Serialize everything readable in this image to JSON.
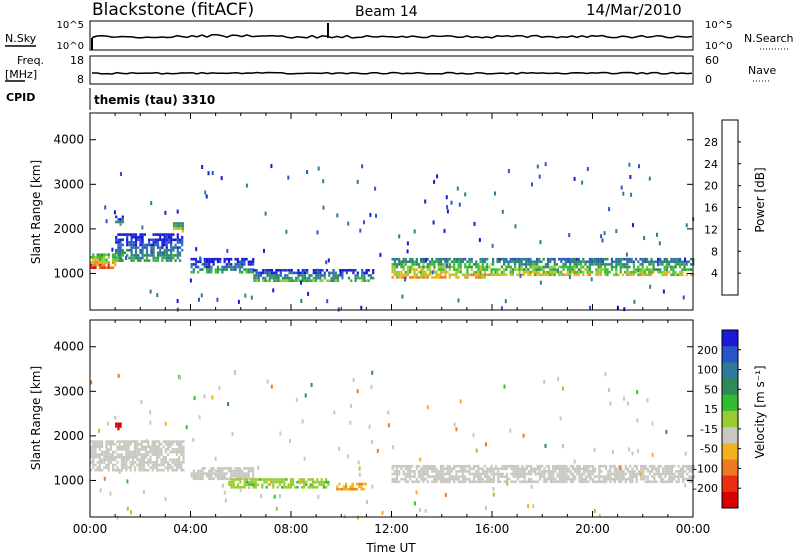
{
  "header": {
    "radar": "Blackstone (fitACF)",
    "beam": "Beam 14",
    "date": "14/Mar/2010"
  },
  "aux": {
    "nsky_label": "N.Sky",
    "nsky_ticks": [
      "10^5",
      "10^0"
    ],
    "nsearch_label": "N.Search",
    "nsearch_ticks": [
      "10^5",
      "10^0"
    ],
    "freq_label": "Freq.",
    "freq_unit": "[MHz]",
    "freq_ticks": [
      "18",
      "8"
    ],
    "nave_label": "Nave",
    "nave_ticks": [
      "60",
      "0"
    ],
    "cpid_label": "CPID",
    "cpid_value": "themis (tau) 3310"
  },
  "colors": {
    "power": [
      "#1a1ad6",
      "#2a55c8",
      "#2f7a99",
      "#2e8b57",
      "#33bb33",
      "#99cc33",
      "#f2b21e",
      "#f07820",
      "#e83010",
      "#d80000"
    ],
    "velocity": [
      "#1a1ad6",
      "#2a55c8",
      "#2f7a99",
      "#2e8b57",
      "#33bb33",
      "#99cc33",
      "#c8c8c0",
      "#f2b21e",
      "#f07820",
      "#e83010",
      "#d80000"
    ],
    "ground_scatter": "#c8c8c0"
  },
  "colorbars": {
    "power": {
      "label": "Power [dB]",
      "ticks": [
        "28",
        "24",
        "20",
        "16",
        "12",
        "8",
        "4"
      ]
    },
    "velocity": {
      "label": "Velocity [m s⁻¹]",
      "ticks": [
        "200",
        "100",
        "50",
        "15",
        "-15",
        "-50",
        "-100",
        "-200"
      ]
    }
  },
  "chart_data": [
    {
      "type": "heatmap",
      "name": "power",
      "title": "",
      "xlabel": "",
      "ylabel": "Slant Range [km]",
      "xlim": [
        0,
        24
      ],
      "ylim": [
        180,
        4600
      ],
      "yticks": [
        "1000",
        "2000",
        "3000",
        "4000"
      ],
      "xticks": [
        "00:00",
        "04:00",
        "08:00",
        "12:00",
        "16:00",
        "20:00",
        "00:00"
      ],
      "colorbar": {
        "label": "Power [dB]",
        "range": [
          0,
          32
        ]
      },
      "scatter_regions": [
        {
          "t": [
            0.0,
            1.0
          ],
          "range": [
            1150,
            1450
          ],
          "power": 20
        },
        {
          "t": [
            1.0,
            3.7
          ],
          "range": [
            1300,
            1900
          ],
          "power": 6
        },
        {
          "t": [
            1.0,
            1.3
          ],
          "range": [
            2100,
            2300
          ],
          "power": 6
        },
        {
          "t": [
            3.3,
            3.7
          ],
          "range": [
            1950,
            2150
          ],
          "power": 16
        },
        {
          "t": [
            4.0,
            6.5
          ],
          "range": [
            1050,
            1350
          ],
          "power": 6
        },
        {
          "t": [
            6.5,
            11.3
          ],
          "range": [
            850,
            1100
          ],
          "power": 8
        },
        {
          "t": [
            12.0,
            16.0
          ],
          "range": [
            900,
            1350
          ],
          "power": 16
        },
        {
          "t": [
            16.0,
            24.0
          ],
          "range": [
            950,
            1350
          ],
          "power": 14
        }
      ]
    },
    {
      "type": "heatmap",
      "name": "velocity",
      "title": "",
      "xlabel": "Time UT",
      "ylabel": "Slant Range [km]",
      "xlim": [
        0,
        24
      ],
      "ylim": [
        180,
        4600
      ],
      "yticks": [
        "1000",
        "2000",
        "3000",
        "4000"
      ],
      "xticks": [
        "00:00",
        "04:00",
        "08:00",
        "12:00",
        "16:00",
        "20:00",
        "00:00"
      ],
      "colorbar": {
        "label": "Velocity [m s⁻¹]",
        "range": [
          -200,
          200
        ]
      },
      "scatter_regions": [
        {
          "t": [
            0.0,
            3.7
          ],
          "range": [
            1200,
            1900
          ],
          "velocity": 0
        },
        {
          "t": [
            1.0,
            1.2
          ],
          "range": [
            2150,
            2300
          ],
          "velocity": -200
        },
        {
          "t": [
            4.0,
            6.5
          ],
          "range": [
            1050,
            1300
          ],
          "velocity": 0
        },
        {
          "t": [
            5.5,
            9.5
          ],
          "range": [
            850,
            1050
          ],
          "velocity": 40
        },
        {
          "t": [
            9.8,
            11.0
          ],
          "range": [
            800,
            950
          ],
          "velocity": -40
        },
        {
          "t": [
            12.0,
            24.0
          ],
          "range": [
            950,
            1350
          ],
          "velocity": 0
        }
      ]
    }
  ]
}
